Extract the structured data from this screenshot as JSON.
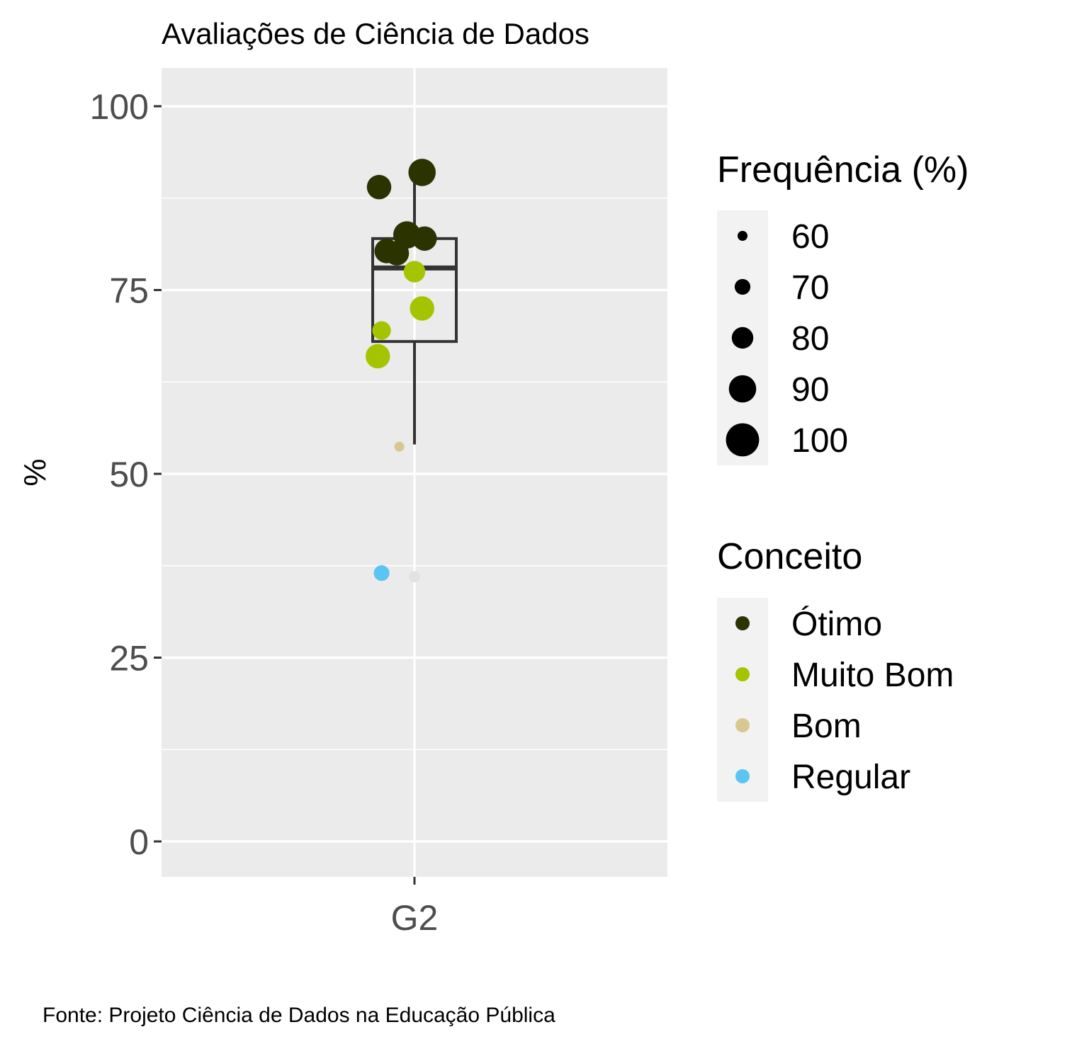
{
  "chart_data": {
    "type": "scatter",
    "title": "Avaliações de Ciência de Dados",
    "xlabel": "",
    "ylabel": "%",
    "caption": "Fonte: Projeto Ciência de Dados na Educação Pública",
    "categories": [
      "G2"
    ],
    "ylim": [
      -5,
      105
    ],
    "yticks": [
      0,
      25,
      50,
      75,
      100
    ],
    "grid": true,
    "legend_position": "right",
    "boxplot": {
      "category": "G2",
      "min": 54,
      "q1": 68,
      "median": 78,
      "q3": 82,
      "max": 91,
      "outliers": [
        36
      ]
    },
    "points": [
      {
        "category": "G2",
        "jitter": -0.14,
        "y": 89,
        "frequency": 85,
        "concept": "Ótimo"
      },
      {
        "category": "G2",
        "jitter": 0.03,
        "y": 91,
        "frequency": 90,
        "concept": "Ótimo"
      },
      {
        "category": "G2",
        "jitter": -0.03,
        "y": 82.5,
        "frequency": 90,
        "concept": "Ótimo"
      },
      {
        "category": "G2",
        "jitter": 0.04,
        "y": 82,
        "frequency": 85,
        "concept": "Ótimo"
      },
      {
        "category": "G2",
        "jitter": -0.11,
        "y": 80.3,
        "frequency": 85,
        "concept": "Ótimo"
      },
      {
        "category": "G2",
        "jitter": -0.07,
        "y": 80,
        "frequency": 85,
        "concept": "Ótimo"
      },
      {
        "category": "G2",
        "jitter": 0.0,
        "y": 77.5,
        "frequency": 80,
        "concept": "Muito Bom"
      },
      {
        "category": "G2",
        "jitter": 0.03,
        "y": 72.5,
        "frequency": 85,
        "concept": "Muito Bom"
      },
      {
        "category": "G2",
        "jitter": -0.13,
        "y": 69.5,
        "frequency": 75,
        "concept": "Muito Bom"
      },
      {
        "category": "G2",
        "jitter": -0.145,
        "y": 66,
        "frequency": 85,
        "concept": "Muito Bom"
      },
      {
        "category": "G2",
        "jitter": -0.06,
        "y": 53.7,
        "frequency": 60,
        "concept": "Bom"
      },
      {
        "category": "G2",
        "jitter": -0.13,
        "y": 36.5,
        "frequency": 70,
        "concept": "Regular"
      }
    ],
    "size_legend": {
      "title": "Frequência (%)",
      "entries": [
        {
          "label": "60",
          "value": 60
        },
        {
          "label": "70",
          "value": 70
        },
        {
          "label": "80",
          "value": 80
        },
        {
          "label": "90",
          "value": 90
        },
        {
          "label": "100",
          "value": 100
        }
      ]
    },
    "color_legend": {
      "title": "Conceito",
      "entries": [
        {
          "label": "Ótimo",
          "color": "#2b3300"
        },
        {
          "label": "Muito Bom",
          "color": "#a5c400"
        },
        {
          "label": "Bom",
          "color": "#d7c98e"
        },
        {
          "label": "Regular",
          "color": "#5cc4f2"
        }
      ]
    },
    "colors": {
      "panel": "#ebebeb",
      "grid": "#ffffff",
      "box": "#333333",
      "outlier": "#e2e2e2"
    }
  }
}
